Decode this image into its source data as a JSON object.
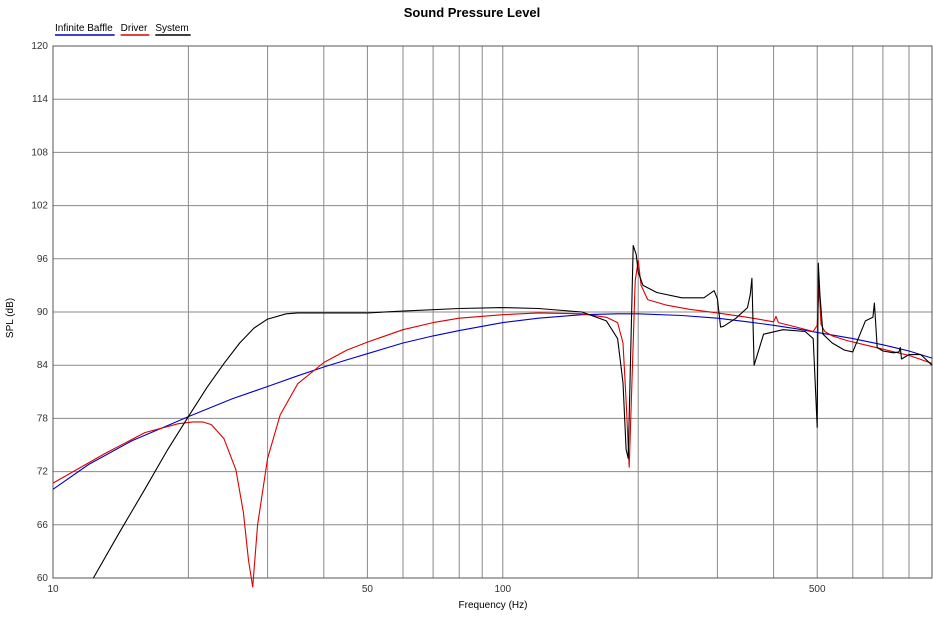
{
  "chart_data": {
    "type": "line",
    "title": "Sound Pressure Level",
    "xlabel": "Frequency (Hz)",
    "ylabel": "SPL (dB)",
    "x_scale": "log",
    "xlim": [
      10,
      900
    ],
    "ylim": [
      60,
      120
    ],
    "grid": true,
    "legend_position": "top-left",
    "x_ticks": [
      {
        "value": 10,
        "label": "10"
      },
      {
        "value": 50,
        "label": "50"
      },
      {
        "value": 100,
        "label": "100"
      },
      {
        "value": 500,
        "label": "500"
      }
    ],
    "x_gridlines": [
      10,
      20,
      30,
      40,
      50,
      60,
      70,
      80,
      90,
      100,
      200,
      300,
      400,
      500,
      600,
      700,
      800,
      900
    ],
    "y_ticks": [
      60,
      66,
      72,
      78,
      84,
      90,
      96,
      102,
      108,
      114,
      120
    ],
    "series": [
      {
        "name": "Infinite Baffle",
        "color": "#0000cc",
        "x": [
          10,
          12,
          15,
          18,
          20,
          25,
          30,
          35,
          40,
          45,
          50,
          60,
          70,
          80,
          100,
          120,
          150,
          180,
          200,
          250,
          300,
          350,
          400,
          450,
          500,
          600,
          700,
          800,
          900
        ],
        "y": [
          70,
          72.8,
          75.5,
          77.2,
          78.2,
          80.2,
          81.6,
          82.8,
          83.8,
          84.6,
          85.3,
          86.5,
          87.3,
          87.9,
          88.8,
          89.3,
          89.7,
          89.8,
          89.8,
          89.6,
          89.3,
          88.9,
          88.5,
          88.1,
          87.7,
          87,
          86.3,
          85.6,
          84.8
        ]
      },
      {
        "name": "Driver",
        "color": "#dd0000",
        "x": [
          10,
          13,
          16,
          19,
          20.5,
          21.5,
          22.5,
          24,
          25.5,
          26.5,
          27.2,
          27.8,
          28.5,
          30,
          32,
          35,
          40,
          45,
          50,
          60,
          70,
          80,
          100,
          120,
          150,
          170,
          180,
          185,
          188,
          191,
          194,
          197,
          200,
          203,
          210,
          230,
          260,
          300,
          350,
          400,
          405,
          410,
          450,
          490,
          500,
          505,
          510,
          520,
          540,
          580,
          650,
          700,
          800,
          900
        ],
        "y": [
          70.7,
          74,
          76.4,
          77.4,
          77.6,
          77.6,
          77.3,
          75.7,
          72.2,
          67.4,
          62,
          59,
          66,
          73.5,
          78.4,
          81.9,
          84.3,
          85.7,
          86.6,
          88,
          88.8,
          89.3,
          89.7,
          89.9,
          89.8,
          89.4,
          88.8,
          86.5,
          80,
          72.5,
          83,
          93.5,
          95.8,
          93,
          91.4,
          90.8,
          90.3,
          89.9,
          89.4,
          88.9,
          89.5,
          88.8,
          88.3,
          87.8,
          88.5,
          93,
          88.6,
          87.8,
          87.3,
          86.8,
          86.2,
          85.8,
          85.1,
          84.2
        ]
      },
      {
        "name": "System",
        "color": "#000000",
        "x": [
          12.3,
          14,
          16,
          18,
          20,
          22,
          24,
          26,
          28,
          30,
          33,
          35,
          40,
          50,
          60,
          80,
          100,
          120,
          150,
          170,
          180,
          185,
          188,
          190,
          192,
          195,
          198,
          200,
          205,
          220,
          250,
          280,
          295,
          300,
          305,
          310,
          330,
          350,
          355,
          358,
          362,
          380,
          420,
          470,
          490,
          495,
          500,
          503,
          507,
          515,
          540,
          575,
          600,
          640,
          665,
          670,
          680,
          700,
          740,
          760,
          765,
          770,
          800,
          850,
          900
        ],
        "y": [
          60,
          65,
          70,
          74.5,
          78.2,
          81.5,
          84.2,
          86.5,
          88.2,
          89.2,
          89.8,
          89.9,
          89.9,
          89.9,
          90.1,
          90.4,
          90.5,
          90.4,
          90,
          89,
          87,
          82,
          74.5,
          73.5,
          83,
          97.5,
          96.5,
          94.5,
          93,
          92.2,
          91.6,
          91.6,
          92.4,
          91.5,
          88.3,
          88.4,
          89.3,
          90.5,
          92,
          93.8,
          84,
          87.5,
          88,
          87.8,
          87,
          82,
          77,
          95.5,
          92,
          87.5,
          86.5,
          85.7,
          85.5,
          89,
          89.4,
          91,
          86,
          85.6,
          85.4,
          85.5,
          86,
          84.7,
          85.2,
          85.2,
          84
        ]
      }
    ]
  }
}
